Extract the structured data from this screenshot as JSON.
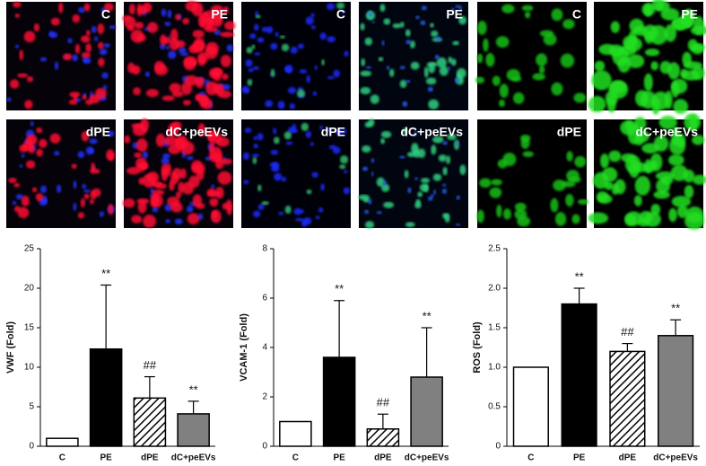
{
  "image_panels": [
    {
      "label": "C"
    },
    {
      "label": "PE"
    },
    {
      "label": "C"
    },
    {
      "label": "PE"
    },
    {
      "label": "C"
    },
    {
      "label": "PE"
    },
    {
      "label": "dPE"
    },
    {
      "label": "dC+peEVs"
    },
    {
      "label": "dPE"
    },
    {
      "label": "dC+peEVs"
    },
    {
      "label": "dPE"
    },
    {
      "label": "dC+peEVs"
    }
  ],
  "chart_data": [
    {
      "type": "bar",
      "y_label": "VWF (Fold)",
      "categories": [
        "C",
        "PE",
        "dPE",
        "dC+peEVs"
      ],
      "values": [
        1,
        12.3,
        6.1,
        4.1
      ],
      "errors": [
        null,
        8.1,
        2.7,
        1.6
      ],
      "annotations": [
        null,
        "**",
        "##",
        "**"
      ],
      "colors": [
        "#ffffff",
        "#000000",
        "#ffffff",
        "#808080"
      ],
      "hatched": [
        false,
        false,
        true,
        false
      ],
      "ylim": [
        0,
        25
      ],
      "yticks": [
        0,
        5,
        10,
        15,
        20,
        25
      ]
    },
    {
      "type": "bar",
      "y_label": "VCAM-1 (Fold)",
      "categories": [
        "C",
        "PE",
        "dPE",
        "dC+peEVs"
      ],
      "values": [
        1,
        3.6,
        0.7,
        2.8
      ],
      "errors": [
        null,
        2.3,
        0.6,
        2.0
      ],
      "annotations": [
        null,
        "**",
        "##",
        "**"
      ],
      "colors": [
        "#ffffff",
        "#000000",
        "#ffffff",
        "#808080"
      ],
      "hatched": [
        false,
        false,
        true,
        false
      ],
      "ylim": [
        0,
        8
      ],
      "yticks": [
        0,
        2,
        4,
        6,
        8
      ]
    },
    {
      "type": "bar",
      "y_label": "ROS (Fold)",
      "categories": [
        "C",
        "PE",
        "dPE",
        "dC+peEVs"
      ],
      "values": [
        1.0,
        1.8,
        1.2,
        1.4
      ],
      "errors": [
        null,
        0.2,
        0.1,
        0.2
      ],
      "annotations": [
        null,
        "**",
        "##",
        "**"
      ],
      "colors": [
        "#ffffff",
        "#000000",
        "#ffffff",
        "#808080"
      ],
      "hatched": [
        false,
        false,
        true,
        false
      ],
      "ylim": [
        0,
        2.5
      ],
      "yticks": [
        0,
        0.5,
        {
          "value": 1,
          "label": "1.0"
        },
        1.5,
        {
          "value": 2,
          "label": "2.0"
        },
        2.5
      ]
    }
  ]
}
